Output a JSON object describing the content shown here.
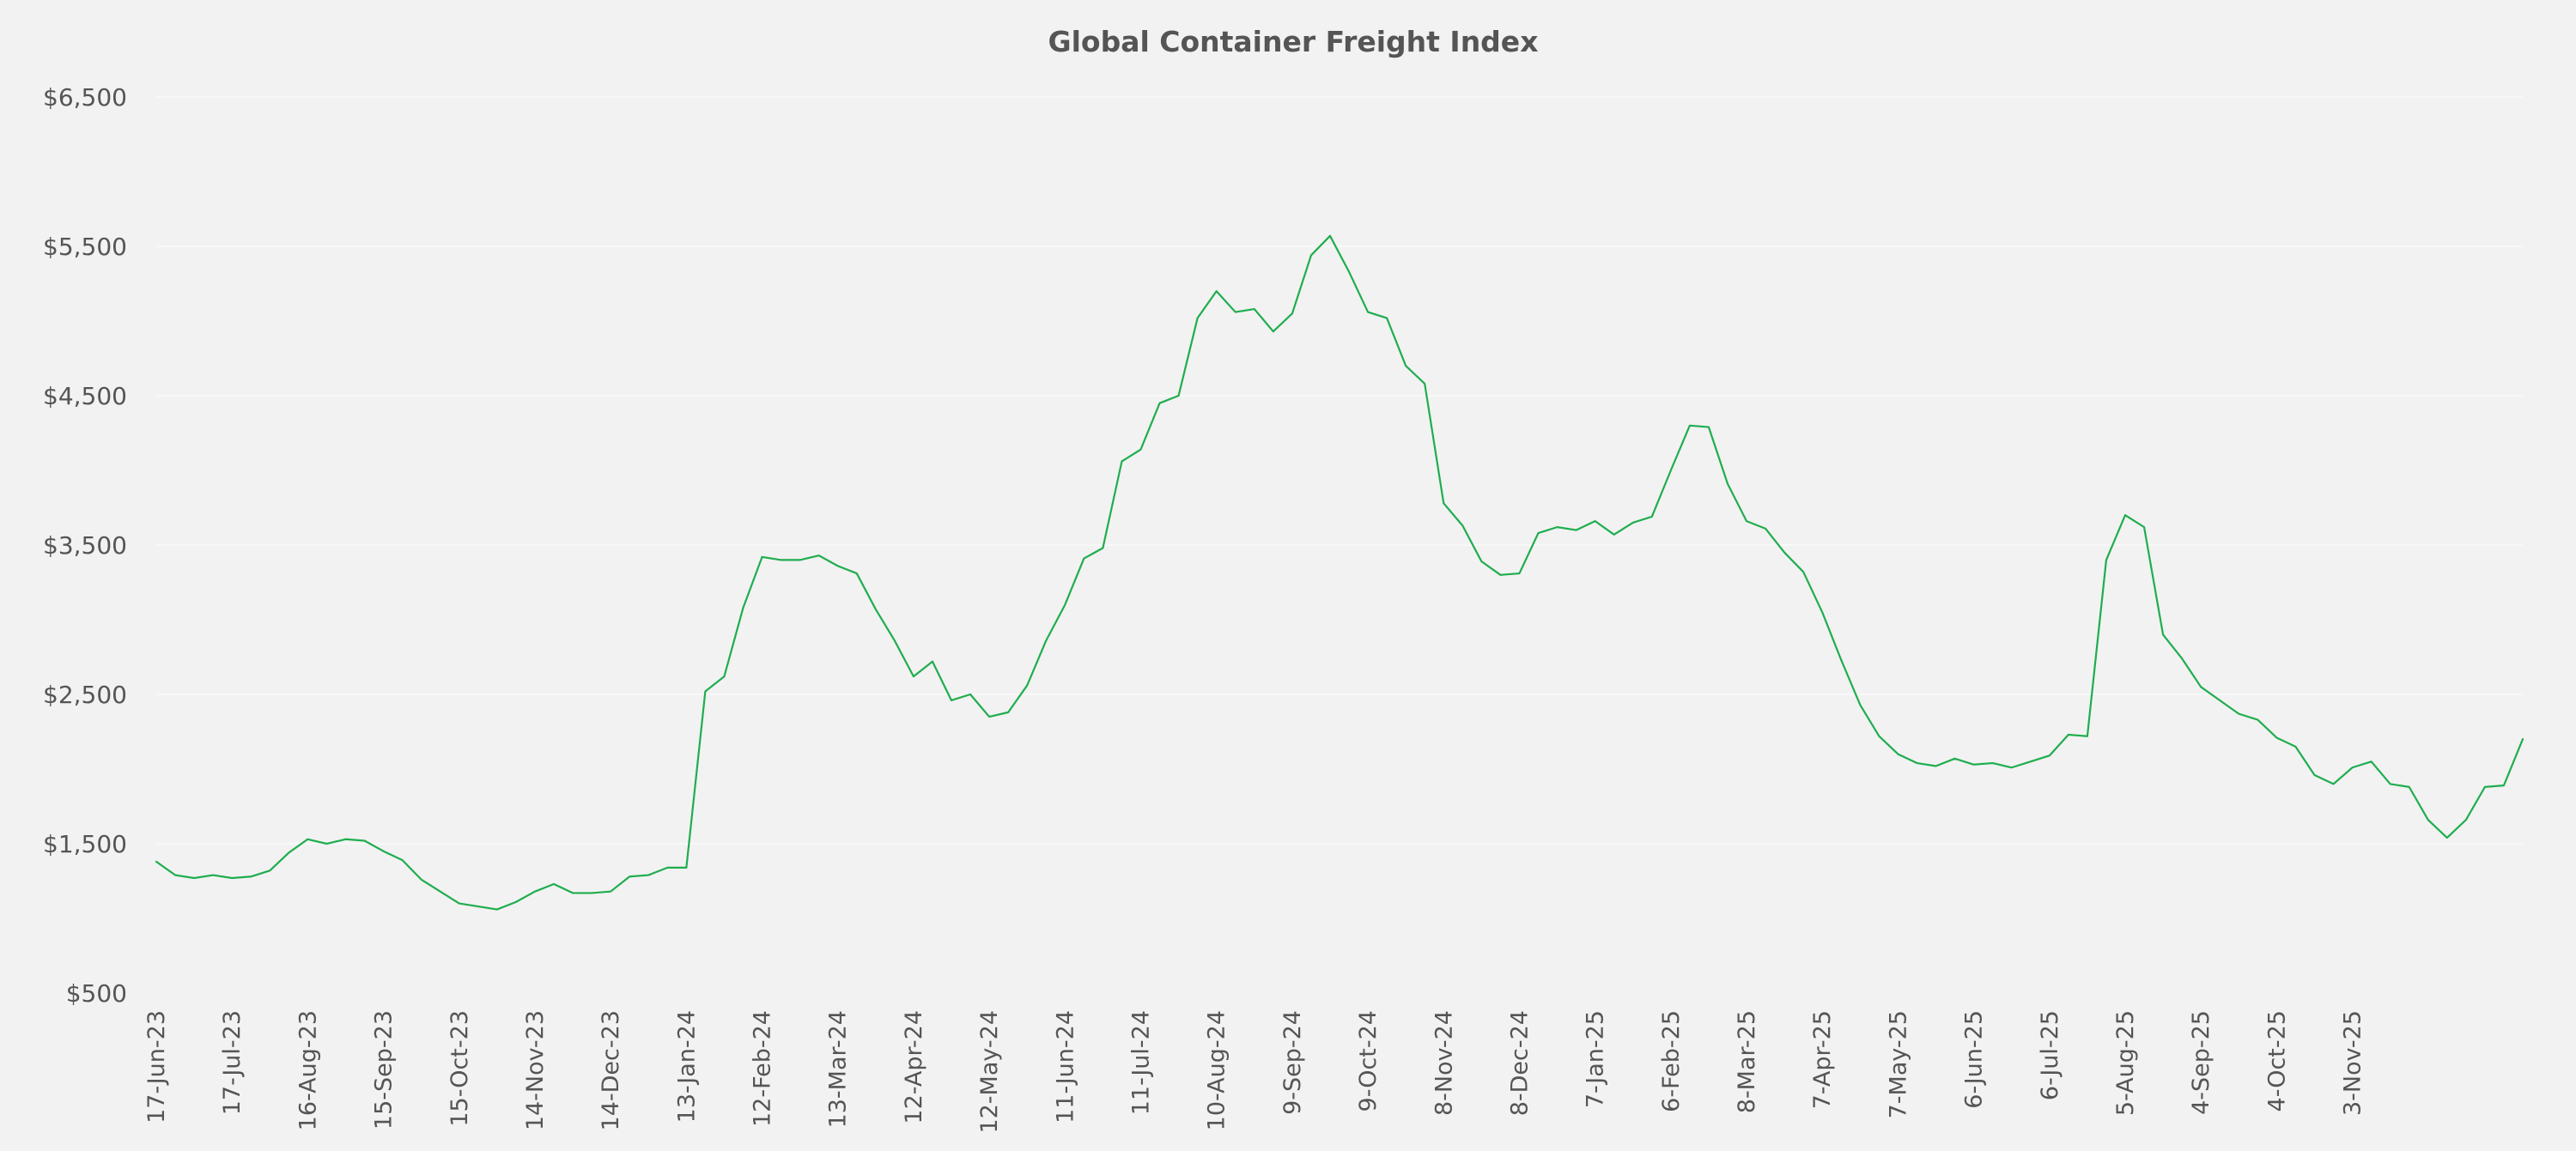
{
  "colors": {
    "background": "#f2f2f2",
    "series": "#1fad4e",
    "text": "#555555"
  },
  "chart_data": {
    "type": "line",
    "title": "Global Container Freight Index",
    "xlabel": "",
    "ylabel": "",
    "ylim": [
      500,
      6500
    ],
    "y_ticks": [
      500,
      1500,
      2500,
      3500,
      4500,
      5500,
      6500
    ],
    "y_tick_labels": [
      "$500",
      "$1,500",
      "$2,500",
      "$3,500",
      "$4,500",
      "$5,500",
      "$6,500"
    ],
    "grid": true,
    "legend": "none",
    "x_tick_labels": [
      "17-Jun-23",
      "17-Jul-23",
      "16-Aug-23",
      "15-Sep-23",
      "15-Oct-23",
      "14-Nov-23",
      "14-Dec-23",
      "13-Jan-24",
      "12-Feb-24",
      "13-Mar-24",
      "12-Apr-24",
      "12-May-24",
      "11-Jun-24",
      "11-Jul-24",
      "10-Aug-24",
      "9-Sep-24",
      "9-Oct-24",
      "8-Nov-24",
      "8-Dec-24",
      "7-Jan-25",
      "6-Feb-25",
      "8-Mar-25",
      "7-Apr-25",
      "7-May-25",
      "6-Jun-25",
      "6-Jul-25",
      "5-Aug-25",
      "4-Sep-25",
      "4-Oct-25",
      "3-Nov-25"
    ],
    "series": [
      {
        "values": [
          1380,
          1290,
          1270,
          1290,
          1270,
          1280,
          1320,
          1440,
          1530,
          1500,
          1530,
          1520,
          1450,
          1390,
          1260,
          1180,
          1100,
          1080,
          1060,
          1110,
          1180,
          1230,
          1170,
          1170,
          1180,
          1280,
          1290,
          1340,
          1340,
          2520,
          2620,
          3080,
          3420,
          3400,
          3400,
          3430,
          3360,
          3310,
          3070,
          2860,
          2620,
          2720,
          2460,
          2500,
          2350,
          2380,
          2560,
          2860,
          3100,
          3410,
          3480,
          4060,
          4140,
          4450,
          4500,
          5020,
          5200,
          5060,
          5080,
          4930,
          5050,
          5440,
          5570,
          5330,
          5060,
          5020,
          4700,
          4580,
          3780,
          3630,
          3390,
          3300,
          3310,
          3580,
          3620,
          3600,
          3660,
          3570,
          3650,
          3690,
          4000,
          4300,
          4290,
          3910,
          3660,
          3610,
          3450,
          3320,
          3050,
          2730,
          2430,
          2220,
          2100,
          2040,
          2020,
          2070,
          2030,
          2040,
          2010,
          2050,
          2090,
          2230,
          2220,
          3400,
          3700,
          3620,
          2900,
          2740,
          2550,
          2460,
          2370,
          2330,
          2210,
          2150,
          1960,
          1900,
          2010,
          2050,
          1900,
          1880,
          1660,
          1540,
          1660,
          1880,
          1890,
          2200
        ]
      }
    ]
  }
}
